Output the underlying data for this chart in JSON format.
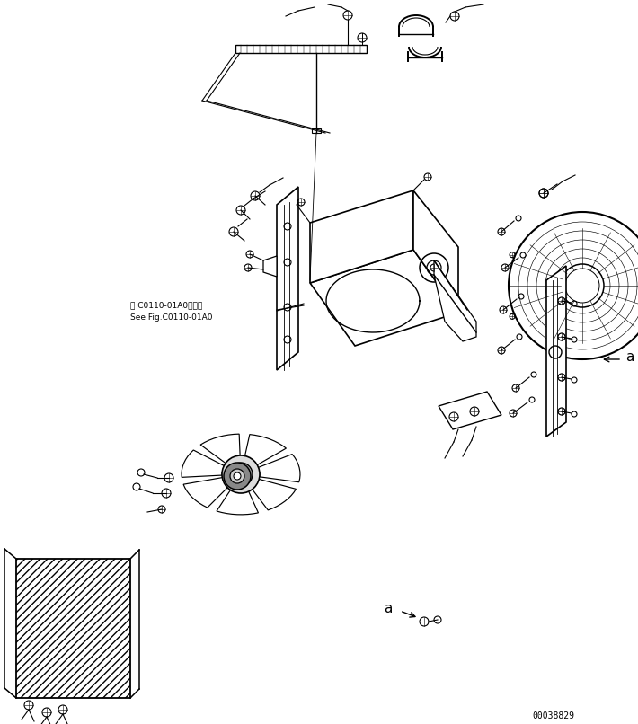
{
  "bg_color": "#ffffff",
  "lc": "#000000",
  "fig_w": 7.1,
  "fig_h": 8.06,
  "dpi": 100,
  "part_number": "00038829",
  "note_line1": "第 C0110-01A0図参照",
  "note_line2": "See Fig.C0110-01A0",
  "label_a": "a"
}
